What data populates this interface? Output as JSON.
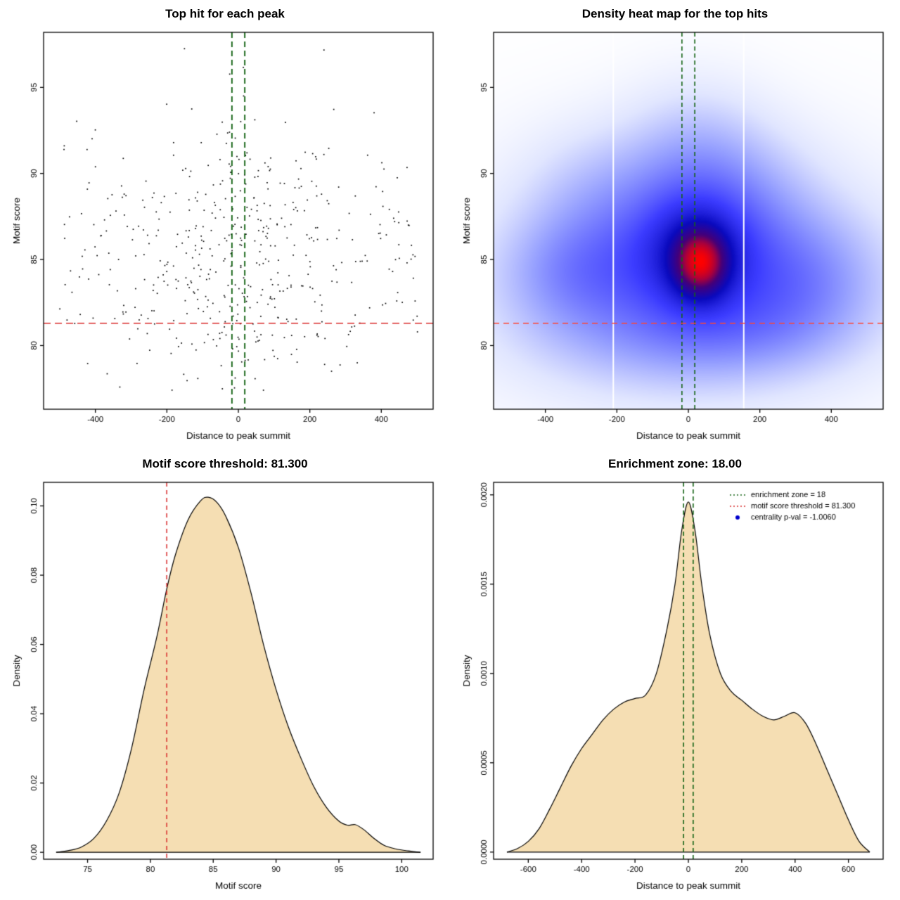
{
  "figure": {
    "background": "#ffffff"
  },
  "chart_data": [
    {
      "type": "scatter",
      "title": "Top hit for each peak",
      "xlabel": "Distance to peak summit",
      "ylabel": "Motif score",
      "xlim": [
        -545,
        545
      ],
      "ylim": [
        76.3,
        98.2
      ],
      "xticks": {
        "values": [
          -400,
          -200,
          0,
          200,
          400
        ],
        "labels": [
          "-400",
          "-200",
          "0",
          "200",
          "400"
        ]
      },
      "yticks": {
        "values": [
          80,
          85,
          90,
          95
        ],
        "labels": [
          "80",
          "85",
          "90",
          "95"
        ]
      },
      "point_color": "#000000",
      "points_model": {
        "n": 510,
        "seed": 13,
        "x_mix_normal": 0.42,
        "x_center": 25,
        "x_sd": 135,
        "x_uniform_range": [
          -505,
          505
        ],
        "y_mean": 84.6,
        "y_sd": 3.8,
        "y_mix2_frac": 0.1,
        "y_mix2_mean": 88.5,
        "y_mix2_sd": 4.0,
        "y_range": [
          77.1,
          97.6
        ]
      },
      "enrichment_zone": {
        "x1": -18,
        "x2": 18,
        "color": "#156415"
      },
      "score_threshold": {
        "y": 81.3,
        "color": "#d92b2b"
      }
    },
    {
      "type": "heatmap",
      "title": "Density heat map for the top hits",
      "xlabel": "Distance to peak summit",
      "ylabel": "Motif score",
      "xlim": [
        -545,
        545
      ],
      "ylim": [
        76.3,
        98.2
      ],
      "xticks": {
        "values": [
          -400,
          -200,
          0,
          200,
          400
        ],
        "labels": [
          "-400",
          "-200",
          "0",
          "200",
          "400"
        ]
      },
      "yticks": {
        "values": [
          80,
          85,
          90,
          95
        ],
        "labels": [
          "80",
          "85",
          "90",
          "95"
        ]
      },
      "blobs": [
        {
          "x": 35,
          "y": 84.8,
          "sx": 52,
          "sy": 1.35,
          "w": 1.0
        },
        {
          "x": 15,
          "y": 85.3,
          "sx": 110,
          "sy": 2.3,
          "w": 0.52
        },
        {
          "x": 0,
          "y": 86.5,
          "sx": 170,
          "sy": 3.6,
          "w": 0.3
        },
        {
          "x": 20,
          "y": 91.5,
          "sx": 130,
          "sy": 2.8,
          "w": 0.16
        },
        {
          "x": -300,
          "y": 84.3,
          "sx": 150,
          "sy": 2.3,
          "w": 0.34
        },
        {
          "x": 310,
          "y": 84.0,
          "sx": 160,
          "sy": 2.6,
          "w": 0.34
        },
        {
          "x": 0,
          "y": 84.0,
          "sx": 420,
          "sy": 5.0,
          "w": 0.26
        },
        {
          "x": -80,
          "y": 80.5,
          "sx": 260,
          "sy": 2.2,
          "w": 0.2
        },
        {
          "x": 180,
          "y": 80.8,
          "sx": 200,
          "sy": 2.0,
          "w": 0.16
        },
        {
          "x": -260,
          "y": 88.8,
          "sx": 140,
          "sy": 2.6,
          "w": 0.16
        },
        {
          "x": 160,
          "y": 88.5,
          "sx": 150,
          "sy": 2.8,
          "w": 0.16
        }
      ],
      "ramp": [
        [
          0.0,
          [
            255,
            255,
            255
          ]
        ],
        [
          0.1,
          [
            225,
            230,
            255
          ]
        ],
        [
          0.25,
          [
            150,
            160,
            255
          ]
        ],
        [
          0.45,
          [
            60,
            60,
            255
          ]
        ],
        [
          0.62,
          [
            10,
            10,
            190
          ]
        ],
        [
          0.78,
          [
            70,
            0,
            120
          ]
        ],
        [
          0.88,
          [
            170,
            0,
            60
          ]
        ],
        [
          1.0,
          [
            255,
            0,
            0
          ]
        ]
      ],
      "white_lines": [
        -210,
        155
      ],
      "enrichment_zone": {
        "x1": -18,
        "x2": 18,
        "color": "#156415"
      },
      "score_threshold": {
        "y": 81.3,
        "color": "#ff4632"
      }
    },
    {
      "type": "area",
      "title": "Motif score threshold: 81.300",
      "xlabel": "Motif score",
      "ylabel": "Density",
      "xlim": [
        71.5,
        102.5
      ],
      "ylim": [
        -0.002,
        0.1068
      ],
      "xticks": {
        "values": [
          75,
          80,
          85,
          90,
          95,
          100
        ],
        "labels": [
          "75",
          "80",
          "85",
          "90",
          "95",
          "100"
        ]
      },
      "yticks": {
        "values": [
          0.0,
          0.02,
          0.04,
          0.06,
          0.08,
          0.1
        ],
        "labels": [
          "0.00",
          "0.02",
          "0.04",
          "0.06",
          "0.08",
          "0.10"
        ]
      },
      "fill": "#f5deb3",
      "line": "#000000",
      "threshold_line": {
        "x": 81.3,
        "color": "#d92b2b"
      },
      "curve": [
        [
          72.5,
          0.0
        ],
        [
          73.5,
          0.0005
        ],
        [
          74.5,
          0.0015
        ],
        [
          75.5,
          0.004
        ],
        [
          76.5,
          0.009
        ],
        [
          77.5,
          0.017
        ],
        [
          78.5,
          0.03
        ],
        [
          79.5,
          0.047
        ],
        [
          80.5,
          0.062
        ],
        [
          81.3,
          0.076
        ],
        [
          82,
          0.086
        ],
        [
          83,
          0.096
        ],
        [
          84,
          0.1015
        ],
        [
          84.6,
          0.1025
        ],
        [
          85.3,
          0.101
        ],
        [
          86,
          0.097
        ],
        [
          87,
          0.088
        ],
        [
          88,
          0.075
        ],
        [
          89,
          0.06
        ],
        [
          90,
          0.047
        ],
        [
          91,
          0.036
        ],
        [
          92,
          0.027
        ],
        [
          93,
          0.019
        ],
        [
          94,
          0.013
        ],
        [
          95,
          0.009
        ],
        [
          95.7,
          0.0078
        ],
        [
          96.3,
          0.008
        ],
        [
          97,
          0.0065
        ],
        [
          97.8,
          0.004
        ],
        [
          98.6,
          0.002
        ],
        [
          99.5,
          0.001
        ],
        [
          100.5,
          0.0004
        ],
        [
          101.5,
          0.0
        ]
      ]
    },
    {
      "type": "area",
      "title": "Enrichment zone: 18.00",
      "xlabel": "Distance to peak summit",
      "ylabel": "Density",
      "xlim": [
        -730,
        730
      ],
      "ylim": [
        -4e-05,
        0.00207
      ],
      "xticks": {
        "values": [
          -600,
          -400,
          -200,
          0,
          200,
          400,
          600
        ],
        "labels": [
          "-600",
          "-400",
          "-200",
          "0",
          "200",
          "400",
          "600"
        ]
      },
      "yticks": {
        "values": [
          0.0,
          0.0005,
          0.001,
          0.0015,
          0.002
        ],
        "labels": [
          "0.0000",
          "0.0005",
          "0.0010",
          "0.0015",
          "0.0020"
        ]
      },
      "fill": "#f5deb3",
      "line": "#000000",
      "zone_lines": {
        "x1": -18,
        "x2": 18,
        "color": "#156415"
      },
      "legend": {
        "entries": [
          {
            "label": "enrichment zone = 18",
            "type": "dotted",
            "color": "#156415"
          },
          {
            "label": "motif score threshold = 81.300",
            "type": "dotted",
            "color": "#d92b2b"
          },
          {
            "label": "centrality p-val = -1.0060",
            "type": "point",
            "color": "#0000cc"
          }
        ]
      },
      "curve": [
        [
          -680,
          0.0
        ],
        [
          -640,
          2e-05
        ],
        [
          -600,
          6e-05
        ],
        [
          -560,
          0.00013
        ],
        [
          -520,
          0.00024
        ],
        [
          -480,
          0.00036
        ],
        [
          -440,
          0.00048
        ],
        [
          -400,
          0.00058
        ],
        [
          -360,
          0.00066
        ],
        [
          -320,
          0.00074
        ],
        [
          -280,
          0.0008
        ],
        [
          -240,
          0.00084
        ],
        [
          -200,
          0.00086
        ],
        [
          -160,
          0.00088
        ],
        [
          -120,
          0.001
        ],
        [
          -80,
          0.00125
        ],
        [
          -50,
          0.0015
        ],
        [
          -25,
          0.0018
        ],
        [
          0,
          0.00196
        ],
        [
          25,
          0.0018
        ],
        [
          50,
          0.0015
        ],
        [
          80,
          0.00122
        ],
        [
          120,
          0.001
        ],
        [
          160,
          0.0009
        ],
        [
          200,
          0.00085
        ],
        [
          240,
          0.0008
        ],
        [
          280,
          0.00076
        ],
        [
          320,
          0.00074
        ],
        [
          360,
          0.00076
        ],
        [
          400,
          0.00078
        ],
        [
          440,
          0.00072
        ],
        [
          480,
          0.0006
        ],
        [
          520,
          0.00046
        ],
        [
          560,
          0.00032
        ],
        [
          600,
          0.00018
        ],
        [
          640,
          6e-05
        ],
        [
          680,
          0.0
        ]
      ]
    }
  ]
}
